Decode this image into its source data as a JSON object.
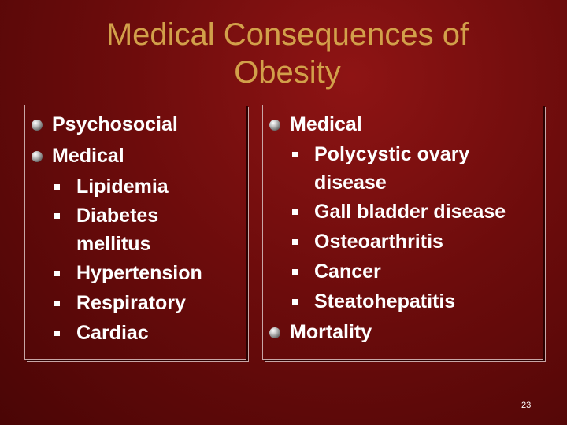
{
  "slide": {
    "title_line1": "Medical Consequences of",
    "title_line2": "Obesity",
    "page_number": "23"
  },
  "left_column": {
    "item1": "Psychosocial",
    "item2": "Medical",
    "sub1": "Lipidemia",
    "sub2_line1": "Diabetes",
    "sub2_line2": "mellitus",
    "sub3": "Hypertension",
    "sub4": "Respiratory",
    "sub5": "Cardiac"
  },
  "right_column": {
    "item1": "Medical",
    "sub1_line1": "Polycystic ovary",
    "sub1_line2": "disease",
    "sub2": "Gall bladder disease",
    "sub3": "Osteoarthritis",
    "sub4": "Cancer",
    "sub5": "Steatohepatitis",
    "item2": "Mortality"
  }
}
